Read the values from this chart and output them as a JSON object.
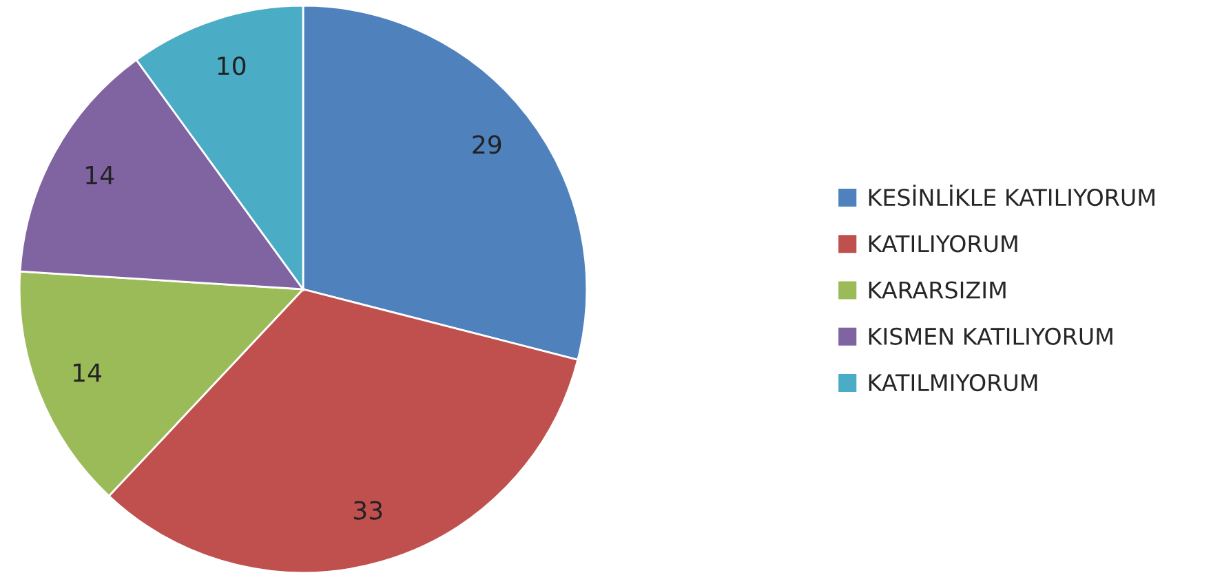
{
  "chart_data": {
    "type": "pie",
    "categories": [
      "KESİNLİKLE KATILIYORUM",
      "KATILIYORUM",
      "KARARSIZIM",
      "KISMEN KATILIYORUM",
      "KATILMIYORUM"
    ],
    "values": [
      29,
      33,
      14,
      14,
      10
    ],
    "colors": [
      "#4f81bd",
      "#c0504d",
      "#9bbb59",
      "#8064a2",
      "#4bacc6"
    ],
    "data_labels": true,
    "legend": "right"
  }
}
